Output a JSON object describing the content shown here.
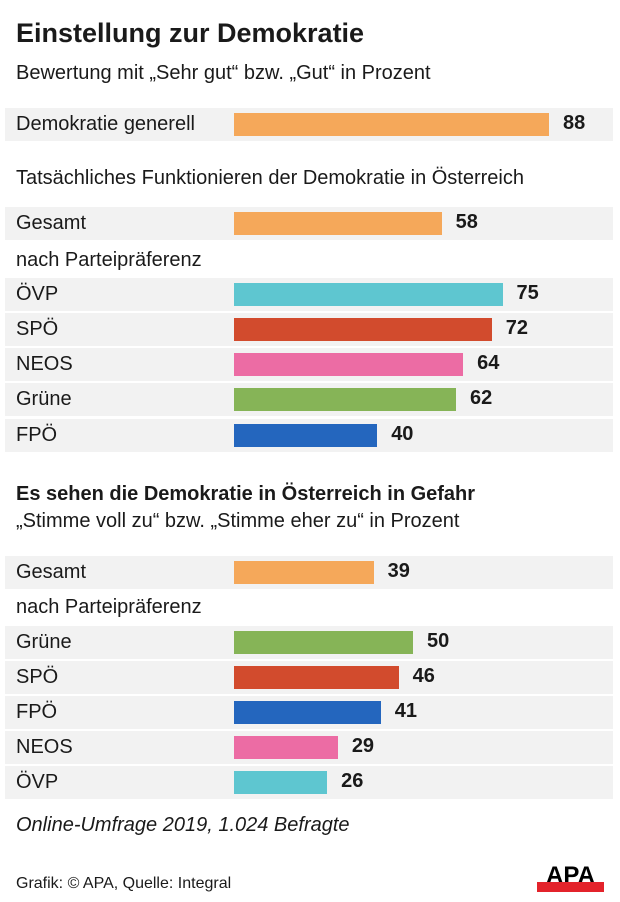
{
  "title": "Einstellung zur Demokratie",
  "subtitle": "Bewertung mit „Sehr gut“ bzw. „Gut“ in Prozent",
  "chart_data": [
    {
      "type": "bar",
      "orientation": "horizontal",
      "categories": [
        "Demokratie generell"
      ],
      "values": [
        88
      ],
      "colors": [
        "#f5a85a"
      ]
    },
    {
      "type": "bar",
      "orientation": "horizontal",
      "title": "Tatsächliches Funktionieren der Demokratie in Österreich",
      "group_label": "nach Parteipräferenz",
      "categories": [
        "Gesamt",
        "ÖVP",
        "SPÖ",
        "NEOS",
        "Grüne",
        "FPÖ"
      ],
      "values": [
        58,
        75,
        72,
        64,
        62,
        40
      ],
      "colors": [
        "#f5a85a",
        "#5ec6d0",
        "#d24b2d",
        "#ec6ca4",
        "#86b457",
        "#2466be"
      ]
    },
    {
      "type": "bar",
      "orientation": "horizontal",
      "title": "Es sehen die Demokratie in Österreich in Gefahr",
      "subtitle": "„Stimme voll zu“ bzw. „Stimme eher zu“ in Prozent",
      "group_label": "nach Parteipräferenz",
      "categories": [
        "Gesamt",
        "Grüne",
        "SPÖ",
        "FPÖ",
        "NEOS",
        "ÖVP"
      ],
      "values": [
        39,
        50,
        46,
        41,
        29,
        26
      ],
      "colors": [
        "#f5a85a",
        "#86b457",
        "#d24b2d",
        "#2466be",
        "#ec6ca4",
        "#5ec6d0"
      ]
    }
  ],
  "footnote": "Online-Umfrage 2019, 1.024 Befragte",
  "credit": "Grafik: © APA, Quelle: Integral",
  "logo": {
    "text": "APA",
    "colors": [
      "#000000",
      "#e3232b"
    ]
  }
}
